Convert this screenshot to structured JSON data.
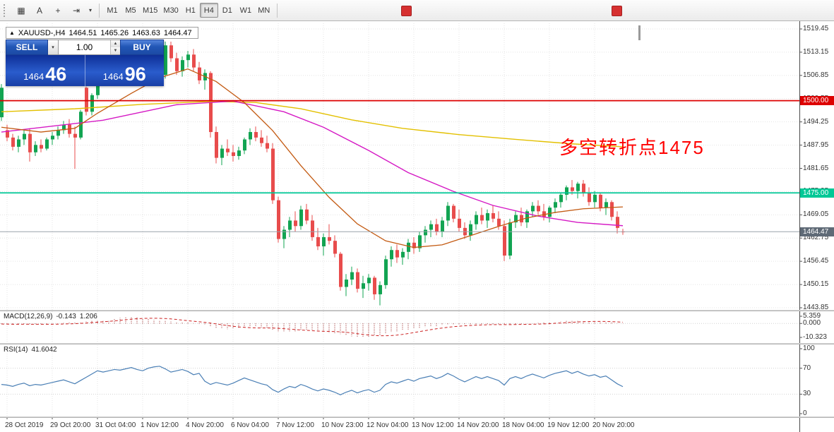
{
  "toolbar": {
    "icons": [
      {
        "name": "chart-grid-icon",
        "glyph": "▦"
      },
      {
        "name": "text-label-icon",
        "glyph": "A"
      },
      {
        "name": "crosshair-icon",
        "glyph": "+"
      },
      {
        "name": "chart-shift-icon",
        "glyph": "⇥"
      },
      {
        "name": "chevron-down-icon",
        "glyph": "▾"
      }
    ],
    "timeframes": [
      "M1",
      "M5",
      "M15",
      "M30",
      "H1",
      "H4",
      "D1",
      "W1",
      "MN"
    ],
    "active_timeframe": "H4"
  },
  "info_bar": {
    "collapse_glyph": "▲",
    "symbol": "XAUUSD-,H4",
    "open": "1464.51",
    "high": "1465.26",
    "low": "1463.63",
    "close": "1464.47"
  },
  "trade_panel": {
    "sell_label": "SELL",
    "buy_label": "BUY",
    "lot": "1.00",
    "sell_price_small": "1464",
    "sell_price_big": "46",
    "buy_price_small": "1464",
    "buy_price_big": "96"
  },
  "annotation": {
    "text": "多空转折点1475",
    "color": "#ff0000"
  },
  "price_tags": {
    "resistance": "1500.00",
    "support": "1475.00",
    "bid": "1464.47"
  },
  "chart_data": {
    "type": "candlestick",
    "symbol": "XAUUSD-",
    "timeframe": "H4",
    "colors": {
      "up": "#12a452",
      "down": "#e84c4c",
      "ma_slow": "#e3c000",
      "ma_mid": "#d519c4",
      "ma_fast": "#c35a12",
      "macd_hist": "#992222",
      "macd_signal": "#cc2222",
      "rsi": "#4a7fb5",
      "grid": "#e4e4e4",
      "level_1500": "#dd0000",
      "level_1475": "#00c896",
      "bid_line": "#9aa2ac",
      "bid_tag": "#5f6a76"
    },
    "price_axis": {
      "labels": [
        "1519.45",
        "1513.15",
        "1506.85",
        "1500.55",
        "1494.25",
        "1487.95",
        "1481.65",
        "1475.35",
        "1469.05",
        "1462.75",
        "1456.45",
        "1450.15",
        "1443.85"
      ],
      "values": [
        1519.45,
        1513.15,
        1506.85,
        1500.55,
        1494.25,
        1487.95,
        1481.65,
        1475.35,
        1469.05,
        1462.75,
        1456.45,
        1450.15,
        1443.85
      ]
    },
    "time_axis": {
      "labels": [
        "28 Oct 2019",
        "29 Oct 20:00",
        "31 Oct 04:00",
        "1 Nov 12:00",
        "4 Nov 20:00",
        "6 Nov 04:00",
        "7 Nov 12:00",
        "10 Nov 23:00",
        "12 Nov 04:00",
        "13 Nov 12:00",
        "14 Nov 20:00",
        "18 Nov 04:00",
        "19 Nov 12:00",
        "20 Nov 20:00"
      ]
    },
    "hlines": [
      {
        "price": 1500.0,
        "label": "1500.00",
        "color_key": "level_1500"
      },
      {
        "price": 1475.0,
        "label": "1475.00",
        "color_key": "level_1475"
      }
    ],
    "bid": {
      "price": 1464.47,
      "label": "1464.47"
    },
    "candles": [
      [
        1495.5,
        1504.5,
        1494.5,
        1503.5
      ],
      [
        1492.0,
        1493.5,
        1489.0,
        1490.0
      ],
      [
        1490.0,
        1491.0,
        1486.5,
        1487.5
      ],
      [
        1487.5,
        1490.5,
        1486.0,
        1489.5
      ],
      [
        1489.5,
        1492.0,
        1488.0,
        1491.0
      ],
      [
        1491.0,
        1492.5,
        1483.5,
        1486.0
      ],
      [
        1486.0,
        1489.0,
        1485.0,
        1488.0
      ],
      [
        1488.0,
        1489.5,
        1486.0,
        1487.0
      ],
      [
        1487.0,
        1490.0,
        1486.5,
        1489.5
      ],
      [
        1489.5,
        1491.5,
        1488.0,
        1490.5
      ],
      [
        1490.5,
        1493.0,
        1489.5,
        1492.0
      ],
      [
        1492.0,
        1494.5,
        1491.0,
        1493.5
      ],
      [
        1493.5,
        1495.0,
        1490.0,
        1491.0
      ],
      [
        1491.0,
        1493.0,
        1481.5,
        1490.0
      ],
      [
        1490.0,
        1497.5,
        1489.5,
        1497.0
      ],
      [
        1503.5,
        1503.8,
        1496.0,
        1497.0
      ],
      [
        1497.0,
        1502.0,
        1496.0,
        1501.5
      ],
      [
        1501.5,
        1508.5,
        1500.5,
        1508.0
      ],
      [
        1508.0,
        1510.0,
        1505.0,
        1506.5
      ],
      [
        1506.5,
        1509.0,
        1504.0,
        1508.0
      ],
      [
        1508.0,
        1511.0,
        1506.5,
        1510.0
      ],
      [
        1510.0,
        1512.0,
        1507.5,
        1509.0
      ],
      [
        1509.0,
        1511.5,
        1507.0,
        1510.5
      ],
      [
        1510.5,
        1513.0,
        1508.0,
        1512.0
      ],
      [
        1512.0,
        1513.5,
        1509.5,
        1511.0
      ],
      [
        1511.0,
        1512.5,
        1508.5,
        1510.0
      ],
      [
        1510.0,
        1513.0,
        1509.0,
        1512.5
      ],
      [
        1512.5,
        1514.5,
        1510.5,
        1513.5
      ],
      [
        1513.5,
        1514.0,
        1506.5,
        1507.0
      ],
      [
        1507.0,
        1516.0,
        1506.0,
        1515.0
      ],
      [
        1515.0,
        1516.0,
        1510.5,
        1511.5
      ],
      [
        1511.5,
        1513.0,
        1507.0,
        1508.0
      ],
      [
        1508.0,
        1512.0,
        1506.5,
        1511.0
      ],
      [
        1511.0,
        1513.5,
        1509.0,
        1512.5
      ],
      [
        1512.5,
        1514.0,
        1508.0,
        1509.0
      ],
      [
        1509.0,
        1510.5,
        1504.5,
        1505.5
      ],
      [
        1505.5,
        1508.5,
        1503.0,
        1507.5
      ],
      [
        1507.5,
        1508.0,
        1490.0,
        1491.5
      ],
      [
        1491.5,
        1493.0,
        1483.0,
        1484.5
      ],
      [
        1484.5,
        1488.0,
        1482.5,
        1487.0
      ],
      [
        1487.0,
        1489.5,
        1485.0,
        1486.0
      ],
      [
        1486.0,
        1488.0,
        1483.5,
        1485.0
      ],
      [
        1485.0,
        1487.5,
        1484.0,
        1486.5
      ],
      [
        1486.5,
        1490.0,
        1485.5,
        1489.5
      ],
      [
        1489.5,
        1492.5,
        1488.0,
        1491.5
      ],
      [
        1491.5,
        1493.0,
        1489.0,
        1490.0
      ],
      [
        1490.0,
        1492.0,
        1487.5,
        1488.5
      ],
      [
        1488.5,
        1490.5,
        1486.0,
        1487.0
      ],
      [
        1487.0,
        1488.5,
        1472.0,
        1473.0
      ],
      [
        1473.0,
        1474.0,
        1461.5,
        1462.5
      ],
      [
        1462.5,
        1466.0,
        1460.0,
        1465.0
      ],
      [
        1465.0,
        1468.5,
        1463.0,
        1467.5
      ],
      [
        1467.5,
        1470.0,
        1464.5,
        1466.0
      ],
      [
        1466.0,
        1471.5,
        1465.0,
        1470.5
      ],
      [
        1470.5,
        1472.0,
        1466.5,
        1467.5
      ],
      [
        1467.5,
        1469.0,
        1462.0,
        1463.0
      ],
      [
        1463.0,
        1465.5,
        1459.5,
        1460.5
      ],
      [
        1460.5,
        1464.0,
        1458.0,
        1463.0
      ],
      [
        1463.0,
        1466.5,
        1461.0,
        1462.0
      ],
      [
        1462.0,
        1463.5,
        1457.5,
        1458.5
      ],
      [
        1458.5,
        1459.0,
        1448.5,
        1449.5
      ],
      [
        1449.5,
        1453.0,
        1447.0,
        1451.5
      ],
      [
        1451.5,
        1455.0,
        1450.0,
        1453.5
      ],
      [
        1453.5,
        1454.5,
        1448.0,
        1449.0
      ],
      [
        1449.0,
        1452.5,
        1446.5,
        1450.5
      ],
      [
        1450.5,
        1453.0,
        1448.5,
        1452.0
      ],
      [
        1452.0,
        1452.5,
        1446.0,
        1447.5
      ],
      [
        1447.5,
        1451.0,
        1444.5,
        1450.0
      ],
      [
        1450.0,
        1458.0,
        1449.0,
        1457.0
      ],
      [
        1457.0,
        1460.5,
        1455.0,
        1459.5
      ],
      [
        1459.5,
        1461.0,
        1456.0,
        1457.5
      ],
      [
        1457.5,
        1460.0,
        1455.5,
        1459.0
      ],
      [
        1459.0,
        1462.5,
        1457.0,
        1461.5
      ],
      [
        1461.5,
        1463.0,
        1458.5,
        1460.0
      ],
      [
        1460.0,
        1464.5,
        1459.0,
        1463.5
      ],
      [
        1463.5,
        1466.0,
        1461.5,
        1465.0
      ],
      [
        1465.0,
        1467.5,
        1463.0,
        1466.5
      ],
      [
        1466.5,
        1468.0,
        1463.5,
        1464.5
      ],
      [
        1464.5,
        1468.5,
        1463.0,
        1467.5
      ],
      [
        1467.5,
        1472.5,
        1466.0,
        1471.5
      ],
      [
        1471.5,
        1472.0,
        1467.0,
        1468.0
      ],
      [
        1468.0,
        1470.5,
        1464.5,
        1465.5
      ],
      [
        1465.5,
        1467.0,
        1462.5,
        1463.5
      ],
      [
        1463.5,
        1467.5,
        1462.0,
        1466.5
      ],
      [
        1466.5,
        1470.0,
        1465.0,
        1469.0
      ],
      [
        1469.0,
        1471.0,
        1466.5,
        1467.5
      ],
      [
        1467.5,
        1470.5,
        1465.5,
        1469.5
      ],
      [
        1469.5,
        1471.5,
        1467.0,
        1468.0
      ],
      [
        1468.0,
        1470.0,
        1465.0,
        1466.0
      ],
      [
        1466.0,
        1467.5,
        1456.5,
        1458.0
      ],
      [
        1458.0,
        1468.0,
        1457.0,
        1467.0
      ],
      [
        1467.0,
        1470.0,
        1465.5,
        1469.0
      ],
      [
        1469.0,
        1471.0,
        1466.0,
        1467.0
      ],
      [
        1467.0,
        1470.5,
        1465.5,
        1470.0
      ],
      [
        1470.0,
        1472.5,
        1468.5,
        1471.5
      ],
      [
        1471.5,
        1473.0,
        1469.0,
        1470.0
      ],
      [
        1470.0,
        1472.0,
        1467.5,
        1468.5
      ],
      [
        1468.5,
        1471.5,
        1467.0,
        1471.0
      ],
      [
        1471.0,
        1473.5,
        1469.5,
        1472.5
      ],
      [
        1472.5,
        1475.0,
        1471.0,
        1474.5
      ],
      [
        1474.5,
        1477.0,
        1473.0,
        1476.5
      ],
      [
        1476.5,
        1478.5,
        1474.5,
        1475.5
      ],
      [
        1475.5,
        1478.0,
        1473.5,
        1477.5
      ],
      [
        1477.5,
        1478.5,
        1474.0,
        1475.0
      ],
      [
        1475.0,
        1476.5,
        1471.5,
        1472.5
      ],
      [
        1472.5,
        1475.5,
        1471.0,
        1474.5
      ],
      [
        1474.5,
        1475.0,
        1470.0,
        1471.0
      ],
      [
        1471.0,
        1473.5,
        1469.0,
        1472.5
      ],
      [
        1472.5,
        1473.0,
        1467.5,
        1468.5
      ],
      [
        1468.5,
        1470.0,
        1464.0,
        1465.5
      ],
      [
        1464.51,
        1465.26,
        1463.63,
        1464.47
      ]
    ],
    "overlays": {
      "ma_slow": [
        [
          0,
          1497.0
        ],
        [
          13,
          1497.8
        ],
        [
          25,
          1499.0
        ],
        [
          37,
          1499.8
        ],
        [
          45,
          1499.5
        ],
        [
          53,
          1497.8
        ],
        [
          62,
          1494.8
        ],
        [
          71,
          1492.5
        ],
        [
          81,
          1490.8
        ],
        [
          91,
          1489.5
        ],
        [
          101,
          1488.3
        ],
        [
          110,
          1487.5
        ]
      ],
      "ma_mid": [
        [
          0,
          1491.5
        ],
        [
          18,
          1494.7
        ],
        [
          31,
          1498.9
        ],
        [
          41,
          1499.9
        ],
        [
          50,
          1497.0
        ],
        [
          57,
          1492.8
        ],
        [
          65,
          1486.5
        ],
        [
          72,
          1480.5
        ],
        [
          80,
          1475.4
        ],
        [
          87,
          1471.6
        ],
        [
          95,
          1468.7
        ],
        [
          102,
          1467.0
        ],
        [
          110,
          1466.1
        ]
      ],
      "ma_fast": [
        [
          0,
          1492.8
        ],
        [
          7,
          1491.5
        ],
        [
          13,
          1492.5
        ],
        [
          17,
          1496.6
        ],
        [
          23,
          1502.0
        ],
        [
          28,
          1506.2
        ],
        [
          33,
          1508.6
        ],
        [
          38,
          1505.2
        ],
        [
          43,
          1499.5
        ],
        [
          48,
          1491.9
        ],
        [
          53,
          1482.4
        ],
        [
          58,
          1473.8
        ],
        [
          63,
          1466.6
        ],
        [
          68,
          1462.0
        ],
        [
          73,
          1460.2
        ],
        [
          78,
          1460.9
        ],
        [
          83,
          1463.4
        ],
        [
          88,
          1465.9
        ],
        [
          93,
          1468.2
        ],
        [
          98,
          1469.7
        ],
        [
          103,
          1470.7
        ],
        [
          110,
          1471.2
        ]
      ]
    },
    "macd": {
      "label": "MACD(12,26,9)",
      "main": "-0.143",
      "signal": "1.206",
      "axis_labels": [
        "5.359",
        "0.000",
        "-10.323"
      ],
      "axis_values": [
        5.359,
        0,
        -10.323
      ],
      "hist": [
        -0.4,
        -0.5,
        -0.8,
        -0.6,
        -0.4,
        -0.7,
        -0.9,
        -0.6,
        -0.3,
        -0.2,
        -0.1,
        0.3,
        0.5,
        0.8,
        1.2,
        1.6,
        2.0,
        2.4,
        2.6,
        2.6,
        3.4,
        4.2,
        4.8,
        5.2,
        4.6,
        3.8,
        3.2,
        2.8,
        2.4,
        2.0,
        1.6,
        1.2,
        0.9,
        0.6,
        0.2,
        -0.3,
        -1.0,
        -2.5,
        -3.6,
        -4.0,
        -4.2,
        -4.0,
        -3.5,
        -2.8,
        -2.5,
        -2.6,
        -3.0,
        -3.4,
        -4.5,
        -6.0,
        -6.5,
        -6.3,
        -5.8,
        -5.2,
        -5.0,
        -5.3,
        -5.8,
        -6.2,
        -6.8,
        -7.4,
        -8.0,
        -9.0,
        -9.5,
        -10.0,
        -10.3,
        -9.8,
        -9.2,
        -8.6,
        -7.6,
        -6.6,
        -5.8,
        -5.0,
        -4.4,
        -3.8,
        -3.2,
        -2.7,
        -2.2,
        -1.8,
        -1.4,
        -1.1,
        -0.9,
        -1.0,
        -1.2,
        -1.0,
        -0.8,
        -0.6,
        -0.5,
        -0.6,
        -0.8,
        -1.2,
        -1.0,
        -0.6,
        -0.3,
        -0.1,
        0.1,
        0.3,
        0.5,
        0.8,
        1.2,
        1.5,
        1.8,
        2.0,
        1.9,
        1.7,
        1.4,
        1.2,
        1.0,
        0.8,
        0.5,
        0.1,
        -0.143
      ]
    },
    "rsi": {
      "label": "RSI(14)",
      "value": "41.6042",
      "axis_labels": [
        "100",
        "70",
        "30",
        "0"
      ],
      "axis_values": [
        100,
        70,
        30,
        0
      ],
      "levels": [
        70,
        30
      ],
      "values": [
        45,
        44,
        42,
        45,
        47,
        43,
        45,
        44,
        46,
        48,
        50,
        52,
        49,
        46,
        51,
        56,
        61,
        66,
        64,
        66,
        68,
        67,
        69,
        71,
        68,
        66,
        70,
        72,
        73,
        69,
        64,
        66,
        68,
        65,
        60,
        62,
        50,
        45,
        48,
        46,
        44,
        47,
        51,
        55,
        52,
        49,
        46,
        44,
        37,
        33,
        38,
        42,
        40,
        45,
        42,
        38,
        35,
        38,
        36,
        33,
        29,
        33,
        36,
        32,
        35,
        37,
        33,
        36,
        45,
        49,
        47,
        50,
        53,
        50,
        54,
        56,
        58,
        54,
        57,
        62,
        58,
        53,
        49,
        53,
        57,
        54,
        57,
        54,
        51,
        44,
        54,
        57,
        54,
        58,
        61,
        58,
        55,
        59,
        62,
        64,
        66,
        62,
        65,
        61,
        58,
        60,
        56,
        58,
        52,
        46,
        41.6
      ]
    }
  }
}
